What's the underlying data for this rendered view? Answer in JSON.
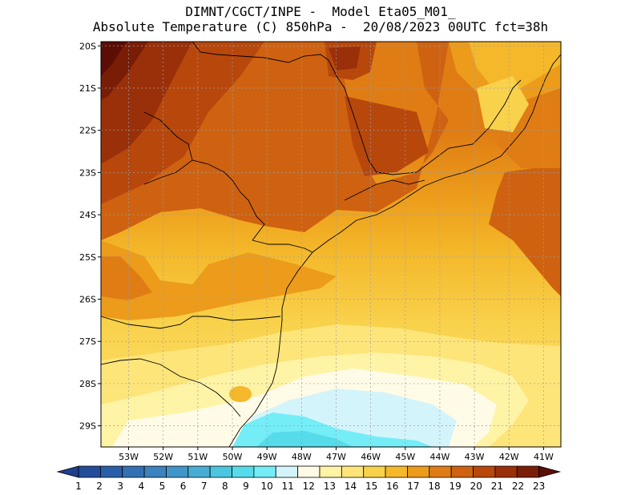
{
  "header": {
    "line1": "DIMNT/CGCT/INPE -  Model Eta05_M01_",
    "line2": "Absolute Temperature (C) 850hPa -  20/08/2023 00UTC fct=38h"
  },
  "map": {
    "lat_labels": [
      "20S",
      "21S",
      "22S",
      "23S",
      "24S",
      "25S",
      "26S",
      "27S",
      "28S",
      "29S"
    ],
    "lon_labels": [
      "53W",
      "52W",
      "51W",
      "50W",
      "49W",
      "48W",
      "47W",
      "46W",
      "45W",
      "44W",
      "43W",
      "42W",
      "41W"
    ],
    "lat_range": [
      -29.5,
      -19.9
    ],
    "lon_range": [
      -53.8,
      -40.5
    ]
  },
  "colorbar": {
    "labels": [
      "1",
      "2",
      "3",
      "4",
      "5",
      "6",
      "7",
      "8",
      "9",
      "10",
      "11",
      "12",
      "13",
      "14",
      "15",
      "16",
      "17",
      "18",
      "19",
      "20",
      "21",
      "22",
      "23"
    ],
    "colors": [
      "#1f3f8f",
      "#234d9b",
      "#2a5ea8",
      "#3370b3",
      "#3b82be",
      "#4196c9",
      "#46aed5",
      "#4cc6e0",
      "#56dbea",
      "#74edf7",
      "#d4f4fb",
      "#fffbe6",
      "#fff3a6",
      "#fde57a",
      "#f9d24c",
      "#f4b82a",
      "#ec9c1a",
      "#e07c14",
      "#cf6210",
      "#b8470c",
      "#9a3009",
      "#7a1d07",
      "#5c0d05"
    ]
  }
}
